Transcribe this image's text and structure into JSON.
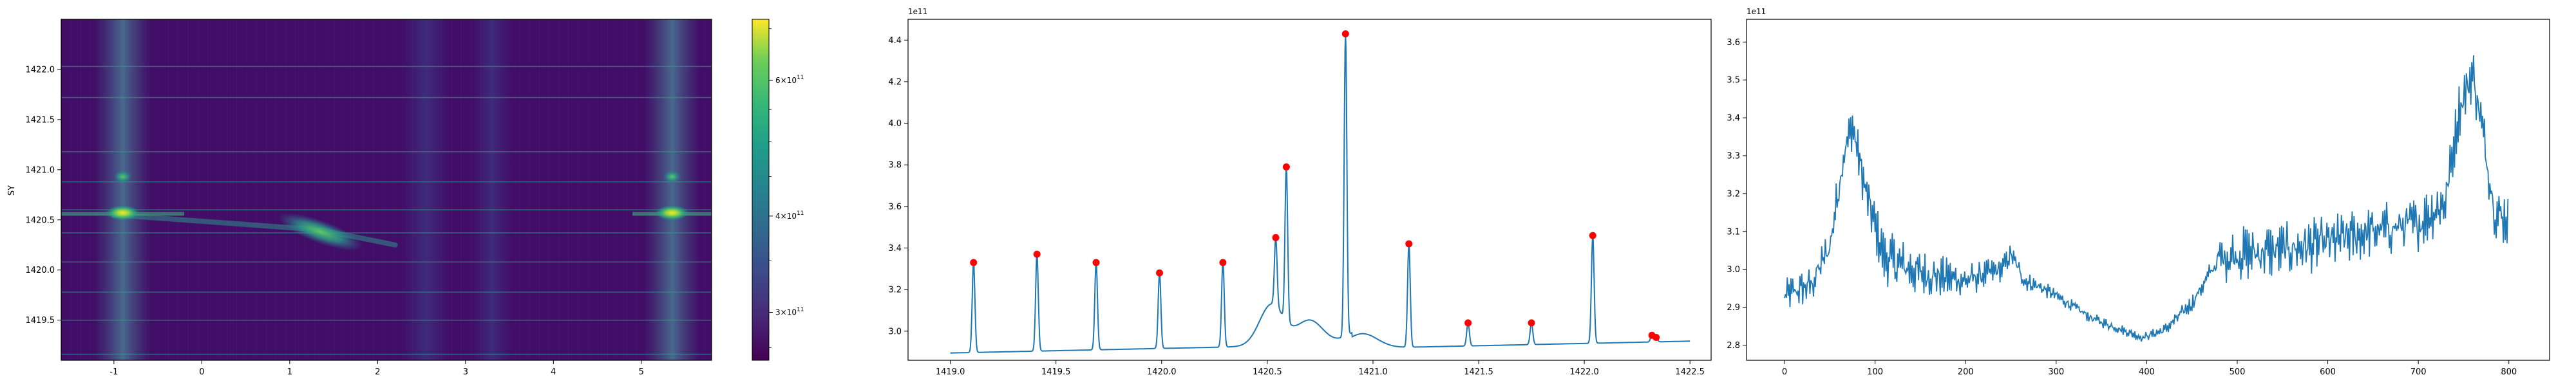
{
  "chart_data": [
    {
      "type": "heatmap",
      "title": "",
      "xlabel": "",
      "ylabel": "SY",
      "xlim": [
        -1.6,
        5.8
      ],
      "ylim": [
        1419.1,
        1422.5
      ],
      "x_ticks": [
        -1,
        0,
        1,
        2,
        3,
        4,
        5
      ],
      "y_ticks": [
        1419.5,
        1420.0,
        1420.5,
        1421.0,
        1421.5,
        1422.0
      ],
      "y_tick_labels": [
        "1419.5",
        "1420.0",
        "1420.5",
        "1421.0",
        "1421.5",
        "1422.0"
      ],
      "colormap": "viridis",
      "colorbar": {
        "scale": "log",
        "range": [
          260000000000.0,
          720000000000.0
        ],
        "ticks": [
          300000000000.0,
          400000000000.0,
          600000000000.0
        ],
        "tick_mantissa": [
          "3",
          "4",
          "6"
        ],
        "tick_base": "×10",
        "tick_exp": "11"
      },
      "bright_columns_x": [
        -0.9,
        5.35
      ],
      "streak": {
        "from": [
          -1.0,
          1420.55
        ],
        "to": [
          2.2,
          1420.25
        ],
        "peak_x": 1.35
      }
    },
    {
      "type": "line",
      "title": "",
      "offset_label": "1e11",
      "xlim": [
        1418.8,
        1422.6
      ],
      "ylim": [
        2.86,
        4.5
      ],
      "x_ticks": [
        1419.0,
        1419.5,
        1420.0,
        1420.5,
        1421.0,
        1421.5,
        1422.0,
        1422.5
      ],
      "x_tick_labels": [
        "1419.0",
        "1419.5",
        "1420.0",
        "1420.5",
        "1421.0",
        "1421.5",
        "1422.0",
        "1422.5"
      ],
      "y_ticks": [
        3.0,
        3.2,
        3.4,
        3.6,
        3.8,
        4.0,
        4.2,
        4.4
      ],
      "y_tick_labels": [
        "3.0",
        "3.2",
        "3.4",
        "3.6",
        "3.8",
        "4.0",
        "4.2",
        "4.4"
      ],
      "line_color": "#1f77b4",
      "peaks_color": "#ff0000",
      "peaks": [
        {
          "x": 1419.11,
          "y": 3.33
        },
        {
          "x": 1419.41,
          "y": 3.37
        },
        {
          "x": 1419.69,
          "y": 3.33
        },
        {
          "x": 1419.99,
          "y": 3.28
        },
        {
          "x": 1420.29,
          "y": 3.33
        },
        {
          "x": 1420.54,
          "y": 3.45
        },
        {
          "x": 1420.59,
          "y": 3.79
        },
        {
          "x": 1420.87,
          "y": 4.43
        },
        {
          "x": 1421.17,
          "y": 3.42
        },
        {
          "x": 1421.45,
          "y": 3.04
        },
        {
          "x": 1421.75,
          "y": 3.04
        },
        {
          "x": 1422.04,
          "y": 3.46
        },
        {
          "x": 1422.32,
          "y": 2.98
        },
        {
          "x": 1422.34,
          "y": 2.97
        }
      ]
    },
    {
      "type": "line",
      "title": "",
      "offset_label": "1e11",
      "xlim": [
        -42,
        845
      ],
      "ylim": [
        2.76,
        3.66
      ],
      "x_ticks": [
        0,
        100,
        200,
        300,
        400,
        500,
        600,
        700,
        800
      ],
      "x_tick_labels": [
        "0",
        "100",
        "200",
        "300",
        "400",
        "500",
        "600",
        "700",
        "800"
      ],
      "y_ticks": [
        2.8,
        2.9,
        3.0,
        3.1,
        3.2,
        3.3,
        3.4,
        3.5,
        3.6
      ],
      "y_tick_labels": [
        "2.8",
        "2.9",
        "3.0",
        "3.1",
        "3.2",
        "3.3",
        "3.4",
        "3.5",
        "3.6"
      ],
      "line_color": "#1f77b4",
      "n_points": 800,
      "envelope": [
        {
          "x": 0,
          "y": 2.93
        },
        {
          "x": 30,
          "y": 2.96
        },
        {
          "x": 50,
          "y": 3.06
        },
        {
          "x": 65,
          "y": 3.3
        },
        {
          "x": 75,
          "y": 3.38
        },
        {
          "x": 90,
          "y": 3.2
        },
        {
          "x": 110,
          "y": 3.03
        },
        {
          "x": 150,
          "y": 2.99
        },
        {
          "x": 200,
          "y": 2.97
        },
        {
          "x": 240,
          "y": 3.0
        },
        {
          "x": 250,
          "y": 3.04
        },
        {
          "x": 265,
          "y": 2.97
        },
        {
          "x": 285,
          "y": 2.95
        },
        {
          "x": 300,
          "y": 2.93
        },
        {
          "x": 340,
          "y": 2.87
        },
        {
          "x": 395,
          "y": 2.82
        },
        {
          "x": 420,
          "y": 2.84
        },
        {
          "x": 450,
          "y": 2.91
        },
        {
          "x": 480,
          "y": 3.03
        },
        {
          "x": 500,
          "y": 3.04
        },
        {
          "x": 550,
          "y": 3.05
        },
        {
          "x": 600,
          "y": 3.07
        },
        {
          "x": 650,
          "y": 3.1
        },
        {
          "x": 700,
          "y": 3.12
        },
        {
          "x": 730,
          "y": 3.18
        },
        {
          "x": 745,
          "y": 3.42
        },
        {
          "x": 760,
          "y": 3.52
        },
        {
          "x": 770,
          "y": 3.38
        },
        {
          "x": 785,
          "y": 3.15
        },
        {
          "x": 800,
          "y": 3.13
        }
      ],
      "noise_amplitude": [
        {
          "x": 0,
          "a": 0.03
        },
        {
          "x": 120,
          "a": 0.05
        },
        {
          "x": 250,
          "a": 0.02
        },
        {
          "x": 300,
          "a": 0.012
        },
        {
          "x": 400,
          "a": 0.008
        },
        {
          "x": 470,
          "a": 0.02
        },
        {
          "x": 490,
          "a": 0.05
        },
        {
          "x": 800,
          "a": 0.05
        }
      ]
    }
  ]
}
